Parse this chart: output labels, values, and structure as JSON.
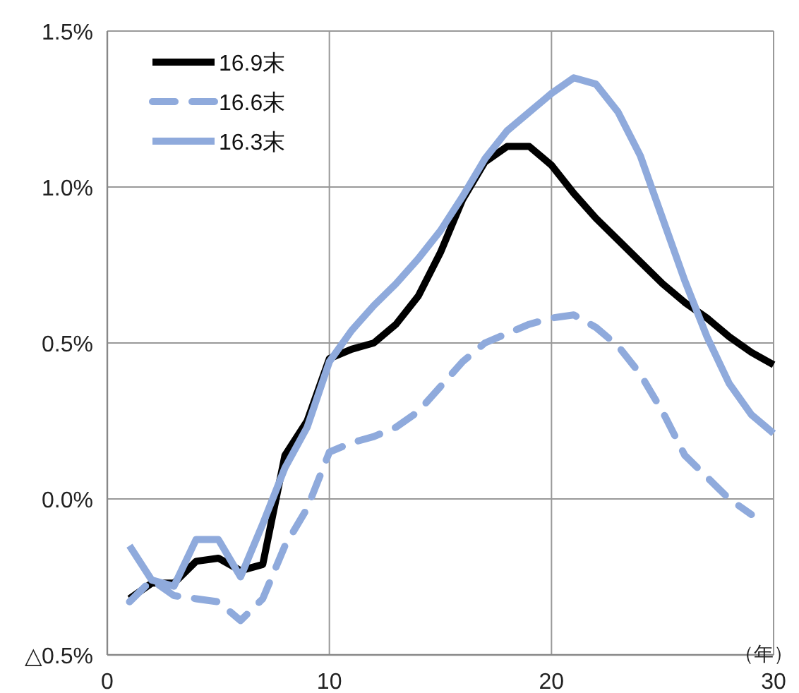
{
  "chart_data": {
    "type": "line",
    "xlabel": "（年）",
    "x": [
      1,
      2,
      3,
      4,
      5,
      6,
      7,
      8,
      9,
      10,
      11,
      12,
      13,
      14,
      15,
      16,
      17,
      18,
      19,
      20,
      21,
      22,
      23,
      24,
      25,
      26,
      27,
      28,
      29,
      30
    ],
    "xlim": [
      0,
      30
    ],
    "xticks": [
      0,
      10,
      20,
      30
    ],
    "ylim": [
      -0.5,
      1.5
    ],
    "yticks": [
      {
        "value": -0.5,
        "label": "△0.5%"
      },
      {
        "value": 0,
        "label": "0.0%"
      },
      {
        "value": 0.5,
        "label": "0.5%"
      },
      {
        "value": 1.0,
        "label": "1.0%"
      },
      {
        "value": 1.5,
        "label": "1.5%"
      }
    ],
    "grid": true,
    "legend": "top left",
    "series": [
      {
        "name": "16.9末",
        "color": "#000000",
        "line_style": "solid",
        "values": [
          -0.32,
          -0.27,
          -0.27,
          -0.2,
          -0.19,
          -0.23,
          -0.21,
          0.14,
          0.25,
          0.45,
          0.48,
          0.5,
          0.56,
          0.65,
          0.79,
          0.96,
          1.08,
          1.13,
          1.13,
          1.07,
          0.98,
          0.9,
          0.83,
          0.76,
          0.69,
          0.63,
          0.58,
          0.52,
          0.47,
          0.43
        ]
      },
      {
        "name": "16.6末",
        "color": "#8faadc",
        "line_style": "dashed",
        "values": [
          -0.33,
          -0.26,
          -0.31,
          -0.32,
          -0.33,
          -0.39,
          -0.32,
          -0.15,
          -0.03,
          0.15,
          0.18,
          0.2,
          0.23,
          0.28,
          0.36,
          0.44,
          0.5,
          0.53,
          0.56,
          0.58,
          0.59,
          0.55,
          0.49,
          0.4,
          0.28,
          0.14,
          0.07,
          0.0,
          -0.05,
          null
        ]
      },
      {
        "name": "16.3末",
        "color": "#8faadc",
        "line_style": "solid",
        "values": [
          -0.15,
          -0.26,
          -0.28,
          -0.13,
          -0.13,
          -0.25,
          -0.08,
          0.1,
          0.23,
          0.44,
          0.54,
          0.62,
          0.69,
          0.77,
          0.86,
          0.97,
          1.09,
          1.18,
          1.24,
          1.3,
          1.35,
          1.33,
          1.24,
          1.1,
          0.9,
          0.7,
          0.52,
          0.37,
          0.27,
          0.21
        ]
      }
    ]
  }
}
